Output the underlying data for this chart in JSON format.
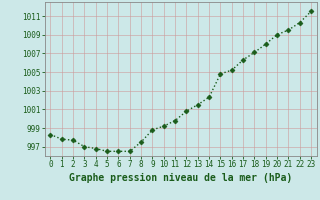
{
  "x": [
    0,
    1,
    2,
    3,
    4,
    5,
    6,
    7,
    8,
    9,
    10,
    11,
    12,
    13,
    14,
    15,
    16,
    17,
    18,
    19,
    20,
    21,
    22,
    23
  ],
  "y": [
    998.3,
    997.8,
    997.7,
    997.0,
    996.8,
    996.5,
    996.5,
    996.5,
    997.5,
    998.8,
    999.2,
    999.8,
    1000.8,
    1001.5,
    1002.3,
    1004.8,
    1005.2,
    1006.3,
    1007.1,
    1008.0,
    1009.0,
    1009.5,
    1010.3,
    1011.5
  ],
  "line_color": "#1a5c1a",
  "marker": "D",
  "marker_size": 2.5,
  "bg_color": "#cce8e8",
  "grid_color": "#cc9999",
  "xlabel": "Graphe pression niveau de la mer (hPa)",
  "xlabel_color": "#1a5c1a",
  "ylabel_ticks": [
    997,
    999,
    1001,
    1003,
    1005,
    1007,
    1009,
    1011
  ],
  "ylim": [
    996.0,
    1012.5
  ],
  "xlim": [
    -0.5,
    23.5
  ],
  "tick_color": "#1a5c1a",
  "tick_fontsize": 5.5,
  "xlabel_fontsize": 7.0,
  "linewidth": 1.0,
  "linestyle": "dotted"
}
